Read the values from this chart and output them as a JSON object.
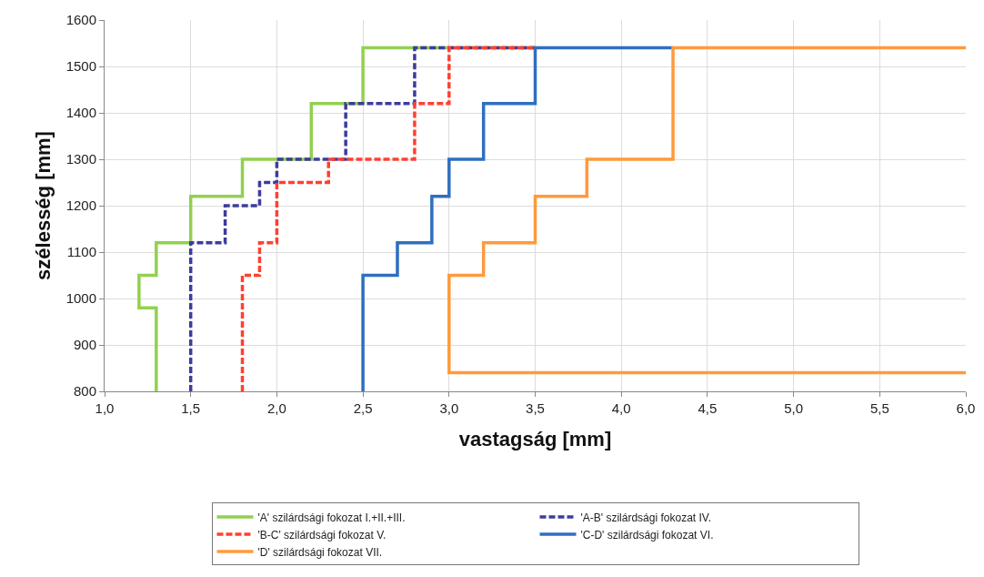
{
  "chart_data": {
    "type": "line",
    "xlabel": "vastagság [mm]",
    "ylabel": "szélesség [mm]",
    "xlim": [
      1.0,
      6.0
    ],
    "xticks": [
      {
        "value": 1.0,
        "label": "1,0"
      },
      {
        "value": 1.5,
        "label": "1,5"
      },
      {
        "value": 2.0,
        "label": "2,0"
      },
      {
        "value": 2.5,
        "label": "2,5"
      },
      {
        "value": 3.0,
        "label": "3,0"
      },
      {
        "value": 3.5,
        "label": "3,5"
      },
      {
        "value": 4.0,
        "label": "4,0"
      },
      {
        "value": 4.5,
        "label": "4,5"
      },
      {
        "value": 5.0,
        "label": "5,0"
      },
      {
        "value": 5.5,
        "label": "5,5"
      },
      {
        "value": 6.0,
        "label": "6,0"
      }
    ],
    "ylim": [
      800,
      1600
    ],
    "yticks": [
      800,
      900,
      1000,
      1100,
      1200,
      1300,
      1400,
      1500,
      1600
    ],
    "grid": true,
    "legend": "bottom",
    "marker": "none",
    "series": [
      {
        "name": "'A' szilárdsági fokozat I.+II.+III.",
        "color": "#92d050",
        "line_style": "solid",
        "x": [
          1.3,
          1.3,
          1.2,
          1.2,
          1.3,
          1.3,
          1.5,
          1.5,
          1.8,
          1.8,
          2.2,
          2.2,
          2.5,
          2.5,
          3.5
        ],
        "values": [
          800,
          980,
          980,
          1050,
          1050,
          1120,
          1120,
          1220,
          1220,
          1300,
          1300,
          1420,
          1420,
          1540,
          1540
        ]
      },
      {
        "name": "'A-B' szilárdsági fokozat IV.",
        "color": "#3c3c9c",
        "line_style": "dashed",
        "x": [
          1.5,
          1.5,
          1.7,
          1.7,
          1.9,
          1.9,
          2.0,
          2.0,
          2.4,
          2.4,
          2.8,
          2.8,
          3.5
        ],
        "values": [
          800,
          1120,
          1120,
          1200,
          1200,
          1250,
          1250,
          1300,
          1300,
          1420,
          1420,
          1540,
          1540
        ]
      },
      {
        "name": "'B-C' szilárdsági fokozat V.",
        "color": "#ff4030",
        "line_style": "dashed",
        "x": [
          1.8,
          1.8,
          1.9,
          1.9,
          2.0,
          2.0,
          2.3,
          2.3,
          2.8,
          2.8,
          3.0,
          3.0,
          3.5
        ],
        "values": [
          800,
          1050,
          1050,
          1120,
          1120,
          1250,
          1250,
          1300,
          1300,
          1420,
          1420,
          1540,
          1540
        ]
      },
      {
        "name": "'C-D' szilárdsági fokozat VI.",
        "color": "#2e6fc0",
        "line_style": "solid",
        "x": [
          2.5,
          2.5,
          2.7,
          2.7,
          2.9,
          2.9,
          3.0,
          3.0,
          3.2,
          3.2,
          3.5,
          3.5,
          4.3
        ],
        "values": [
          800,
          1050,
          1050,
          1120,
          1120,
          1220,
          1220,
          1300,
          1300,
          1420,
          1420,
          1540,
          1540
        ]
      },
      {
        "name": "'D' szilárdsági fokozat VII.",
        "color": "#ff9a3c",
        "line_style": "solid",
        "x": [
          6.0,
          3.0,
          3.0,
          3.2,
          3.2,
          3.5,
          3.5,
          3.8,
          3.8,
          4.3,
          4.3,
          6.0
        ],
        "values": [
          840,
          840,
          1050,
          1050,
          1120,
          1120,
          1220,
          1220,
          1300,
          1300,
          1540,
          1540
        ]
      }
    ]
  }
}
